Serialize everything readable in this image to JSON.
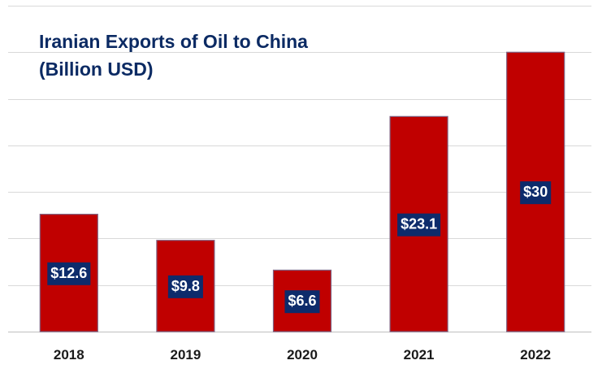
{
  "chart_data": {
    "type": "bar",
    "title_line1": "Iranian Exports of Oil to China",
    "title_line2": "(Billion USD)",
    "categories": [
      "2018",
      "2019",
      "2020",
      "2021",
      "2022"
    ],
    "values": [
      12.6,
      9.8,
      6.6,
      23.1,
      30
    ],
    "data_labels": [
      "$12.6",
      "$9.8",
      "$6.6",
      "$23.1",
      "$30"
    ],
    "xlabel": "",
    "ylabel": "",
    "ylim": [
      0,
      35
    ],
    "grid": true,
    "colors": {
      "bar": "#c00000",
      "label_bg": "#0d2b6b",
      "title": "#0b2a63"
    }
  }
}
